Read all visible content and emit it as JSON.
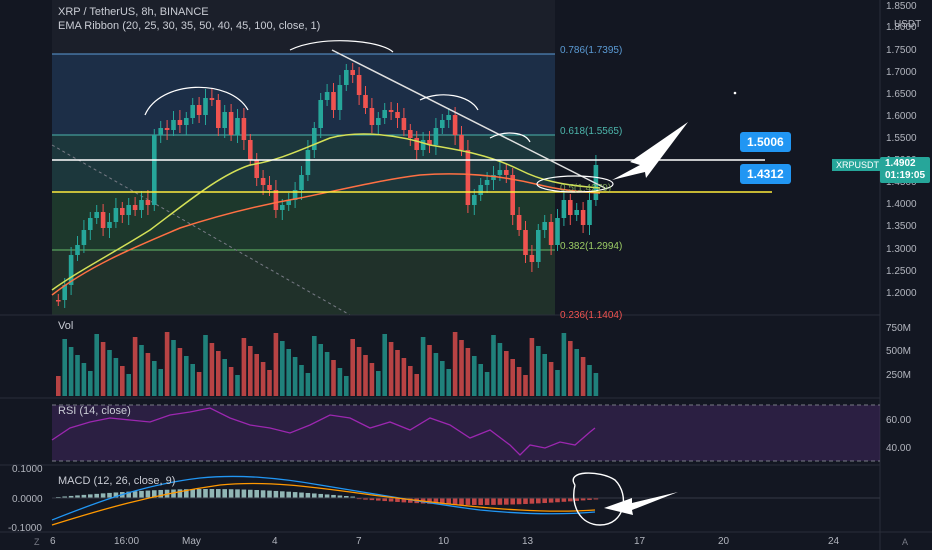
{
  "header": {
    "symbol_line": "XRP / TetherUS, 8h, BINANCE",
    "indicator_line": "EMA Ribbon (20, 25, 30, 35, 50, 40, 45, 100, close, 1)"
  },
  "axis": {
    "currency": "USDT",
    "price_ticks": [
      "1.8500",
      "1.8000",
      "1.7500",
      "1.7000",
      "1.6500",
      "1.6000",
      "1.5500",
      "1.5000",
      "1.4500",
      "1.4000",
      "1.3500",
      "1.3000",
      "1.2500",
      "1.2000"
    ],
    "vol_ticks": [
      "750M",
      "500M",
      "250M"
    ],
    "rsi_ticks": [
      "60.00",
      "40.00"
    ],
    "macd_ticks": [
      "0.1000",
      "0.0000",
      "-0.1000"
    ],
    "time_ticks": [
      "6",
      "16:00",
      "May",
      "4",
      "7",
      "10",
      "13",
      "17",
      "20",
      "24"
    ]
  },
  "fib": {
    "f0786": "0.786(1.7395)",
    "f0618": "0.618(1.5565)",
    "f05": "0.5(1.4279)",
    "f0382": "0.382(1.2994)",
    "f0236": "0.236(1.1404)"
  },
  "callouts": {
    "upper": "1.5006",
    "lower": "1.4312"
  },
  "last_price": {
    "symbol": "XRPUSDT",
    "price": "1.4902",
    "countdown": "01:19:05"
  },
  "panes": {
    "vol": "Vol",
    "rsi": "RSI (14, close)",
    "macd": "MACD (12, 26, close, 9)"
  },
  "bottom_buttons": {
    "z_left": "Z",
    "a_right": "A"
  },
  "colors": {
    "up": "#26a69a",
    "down": "#ef5350",
    "background": "#131722",
    "rsi": "#9c27b0",
    "ema_fast": "#d4e157",
    "ema_slow": "#ff7043"
  }
}
